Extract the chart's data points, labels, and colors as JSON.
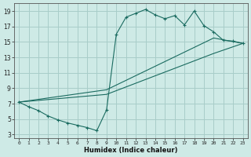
{
  "xlabel": "Humidex (Indice chaleur)",
  "bg_color": "#ceeae6",
  "grid_color": "#a8cdc9",
  "line_color": "#1a6b60",
  "xlim": [
    -0.5,
    23.5
  ],
  "ylim": [
    2.5,
    20.0
  ],
  "xticks": [
    0,
    1,
    2,
    3,
    4,
    5,
    6,
    7,
    8,
    9,
    10,
    11,
    12,
    13,
    14,
    15,
    16,
    17,
    18,
    19,
    20,
    21,
    22,
    23
  ],
  "yticks": [
    3,
    5,
    7,
    9,
    11,
    13,
    15,
    17,
    19
  ],
  "series1_x": [
    0,
    1,
    2,
    3,
    4,
    5,
    6,
    7,
    8,
    9,
    10,
    11,
    12,
    13,
    14,
    15,
    16,
    17,
    18,
    19,
    20,
    21,
    22,
    23
  ],
  "series1_y": [
    7.2,
    6.6,
    6.1,
    5.4,
    4.9,
    4.5,
    4.2,
    3.9,
    3.5,
    6.2,
    16.0,
    18.2,
    18.7,
    19.2,
    18.5,
    18.0,
    18.4,
    17.2,
    19.0,
    17.1,
    16.3,
    15.2,
    15.1,
    14.8
  ],
  "series2_x": [
    0,
    9,
    20,
    23
  ],
  "series2_y": [
    7.2,
    8.8,
    15.5,
    14.8
  ],
  "series3_x": [
    0,
    9,
    20,
    23
  ],
  "series3_y": [
    7.2,
    8.2,
    13.5,
    14.8
  ]
}
